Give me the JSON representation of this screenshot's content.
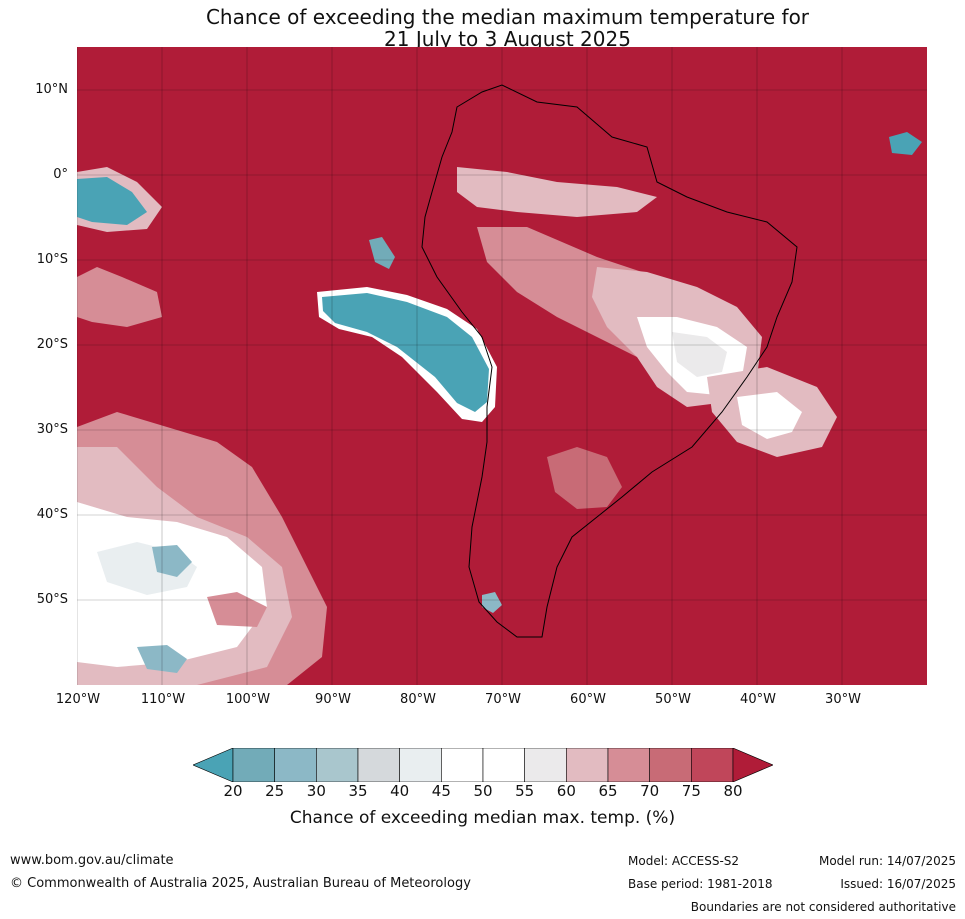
{
  "title": {
    "line1": "Chance of exceeding the median maximum temperature for",
    "line2": "21 July to 3 August 2025"
  },
  "map": {
    "region": "South America",
    "background_color": "#b01c38",
    "latitude_labels": [
      "10°N",
      "0°",
      "10°S",
      "20°S",
      "30°S",
      "40°S",
      "50°S"
    ],
    "longitude_labels": [
      "120°W",
      "110°W",
      "100°W",
      "90°W",
      "80°W",
      "70°W",
      "60°W",
      "50°W",
      "40°W",
      "30°W"
    ]
  },
  "colorbar": {
    "ticks": [
      "20",
      "25",
      "30",
      "35",
      "40",
      "45",
      "50",
      "55",
      "60",
      "65",
      "70",
      "75",
      "80"
    ],
    "colors": [
      "#4aa3b5",
      "#72abb8",
      "#8cb8c6",
      "#a9c6cd",
      "#d5d9dc",
      "#e9eef0",
      "#ffffff",
      "#ffffff",
      "#ebeaeb",
      "#e2bbc1",
      "#d68d96",
      "#c86b76",
      "#c0465a",
      "#b01c38"
    ],
    "label": "Chance of exceeding median max. temp. (%)"
  },
  "footer": {
    "website": "www.bom.gov.au/climate",
    "copyright": "© Commonwealth of Australia 2025, Australian Bureau of Meteorology",
    "model": "Model: ACCESS-S2",
    "base_period": "Base period: 1981-2018",
    "model_run": "Model run: 14/07/2025",
    "issued": "Issued: 16/07/2025",
    "disclaimer": "Boundaries are not considered authoritative"
  }
}
